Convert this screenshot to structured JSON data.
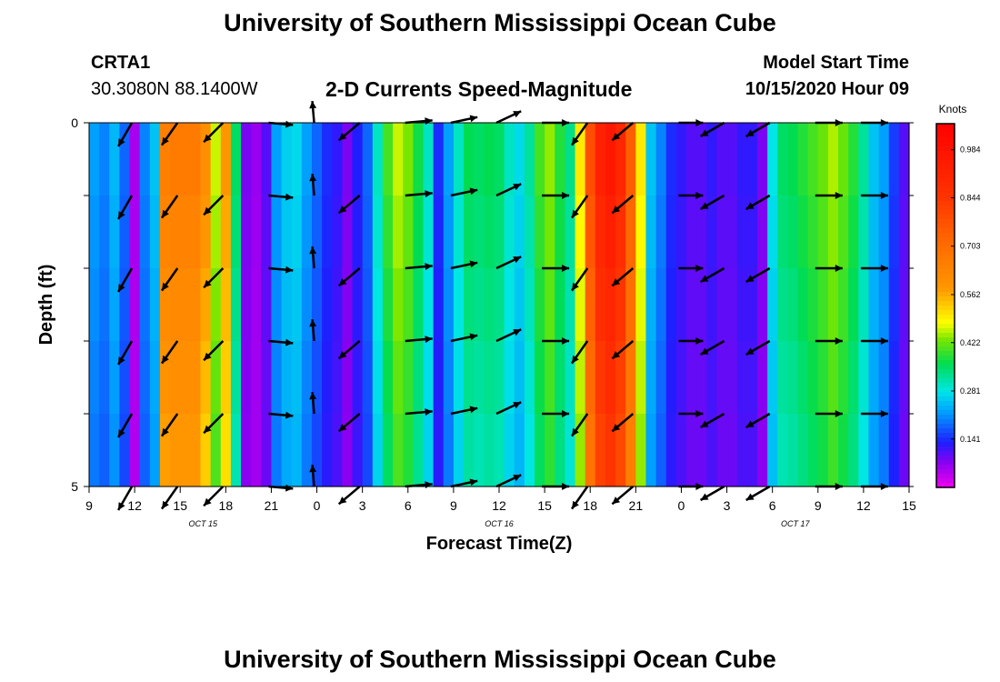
{
  "header": {
    "title": "University of Southern Mississippi Ocean Cube",
    "station": "CRTA1",
    "coords": "30.3080N 88.1400W",
    "subtitle": "2-D Currents Speed-Magnitude",
    "model_start_label": "Model Start Time",
    "model_start_value": "10/15/2020 Hour 09"
  },
  "footer": {
    "title": "University of Southern Mississippi Ocean Cube"
  },
  "chart_data": {
    "type": "heatmap",
    "title": "2-D Currents Speed-Magnitude",
    "xlabel": "Forecast Time(Z)",
    "ylabel": "Depth (ft)",
    "x_ticks": [
      "9",
      "12",
      "15",
      "18",
      "21",
      "0",
      "3",
      "6",
      "9",
      "12",
      "15",
      "18",
      "21",
      "0",
      "3",
      "6",
      "9",
      "12",
      "15"
    ],
    "x_tick_hours": [
      0,
      3,
      6,
      9,
      12,
      15,
      18,
      21,
      24,
      27,
      30,
      33,
      36,
      39,
      42,
      45,
      48,
      51,
      54
    ],
    "x_range_hours": [
      0,
      54
    ],
    "date_labels": [
      {
        "text": "OCT 15",
        "hour": 7.5
      },
      {
        "text": "OCT 16",
        "hour": 27
      },
      {
        "text": "OCT 17",
        "hour": 46.5
      }
    ],
    "y_ticks": [
      "0",
      "5"
    ],
    "y_range": [
      0,
      5
    ],
    "depth_rows": 5,
    "colorbar": {
      "label": "Knots",
      "ticks": [
        "0.984",
        "0.844",
        "0.703",
        "0.562",
        "0.422",
        "0.281",
        "0.141"
      ],
      "tick_values": [
        0.984,
        0.844,
        0.703,
        0.562,
        0.422,
        0.281,
        0.141
      ],
      "range": [
        0,
        1.06
      ]
    },
    "speeds": [
      0.22,
      0.2,
      0.24,
      0.18,
      0.05,
      0.2,
      0.25,
      0.65,
      0.66,
      0.66,
      0.66,
      0.6,
      0.46,
      0.58,
      0.35,
      0.08,
      0.06,
      0.1,
      0.22,
      0.26,
      0.27,
      0.22,
      0.18,
      0.14,
      0.12,
      0.08,
      0.13,
      0.18,
      0.3,
      0.4,
      0.46,
      0.43,
      0.37,
      0.3,
      0.14,
      0.22,
      0.3,
      0.36,
      0.35,
      0.36,
      0.35,
      0.3,
      0.27,
      0.32,
      0.4,
      0.44,
      0.38,
      0.33,
      0.5,
      0.78,
      0.92,
      0.96,
      0.9,
      0.74,
      0.5,
      0.25,
      0.2,
      0.14,
      0.12,
      0.1,
      0.1,
      0.12,
      0.1,
      0.1,
      0.12,
      0.12,
      0.08,
      0.28,
      0.35,
      0.36,
      0.38,
      0.4,
      0.42,
      0.45,
      0.42,
      0.38,
      0.32,
      0.25,
      0.22,
      0.15,
      0.1
    ],
    "arrows": [
      {
        "hour": 3,
        "dir_deg": 210,
        "len": 1
      },
      {
        "hour": 6,
        "dir_deg": 215,
        "len": 1
      },
      {
        "hour": 9,
        "dir_deg": 225,
        "len": 1
      },
      {
        "hour": 12,
        "dir_deg": 95,
        "len": 0.9
      },
      {
        "hour": 15,
        "dir_deg": 355,
        "len": 0.8
      },
      {
        "hour": 18,
        "dir_deg": 230,
        "len": 1
      },
      {
        "hour": 21,
        "dir_deg": 85,
        "len": 1
      },
      {
        "hour": 24,
        "dir_deg": 78,
        "len": 1
      },
      {
        "hour": 27,
        "dir_deg": 65,
        "len": 1
      },
      {
        "hour": 30,
        "dir_deg": 90,
        "len": 1
      },
      {
        "hour": 33,
        "dir_deg": 215,
        "len": 1
      },
      {
        "hour": 36,
        "dir_deg": 230,
        "len": 1
      },
      {
        "hour": 39,
        "dir_deg": 90,
        "len": 0.9
      },
      {
        "hour": 42,
        "dir_deg": 240,
        "len": 1
      },
      {
        "hour": 45,
        "dir_deg": 240,
        "len": 1
      },
      {
        "hour": 48,
        "dir_deg": 90,
        "len": 1
      },
      {
        "hour": 51,
        "dir_deg": 90,
        "len": 1
      }
    ]
  }
}
